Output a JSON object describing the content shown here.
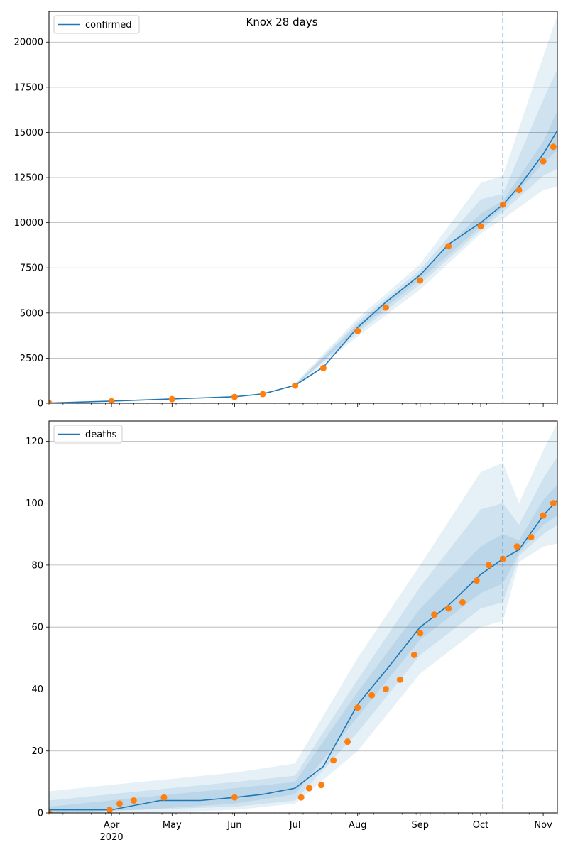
{
  "title": "Knox 28 days",
  "colors": {
    "model": "#1f77b4",
    "observed": "#ff7f0e",
    "band": "#1f77b4",
    "grid": "#b0b0b0",
    "forecast_line": "#1f77b4"
  },
  "x_ticks": [
    {
      "date": "2020-04-01",
      "label": "Apr",
      "sublabel": "2020"
    },
    {
      "date": "2020-05-01",
      "label": "May",
      "sublabel": ""
    },
    {
      "date": "2020-06-01",
      "label": "Jun",
      "sublabel": ""
    },
    {
      "date": "2020-07-01",
      "label": "Jul",
      "sublabel": ""
    },
    {
      "date": "2020-08-01",
      "label": "Aug",
      "sublabel": ""
    },
    {
      "date": "2020-09-01",
      "label": "Sep",
      "sublabel": ""
    },
    {
      "date": "2020-10-01",
      "label": "Oct",
      "sublabel": ""
    },
    {
      "date": "2020-11-01",
      "label": "Nov",
      "sublabel": ""
    }
  ],
  "chart_data": [
    {
      "type": "line",
      "title": "Knox 28 days",
      "legend": [
        "confirmed"
      ],
      "legend_position": "top-left",
      "grid": "horizontal",
      "xlim": [
        "2020-03-01",
        "2020-11-08"
      ],
      "ylim": [
        0,
        21700
      ],
      "yticks": [
        0,
        2500,
        5000,
        7500,
        10000,
        12500,
        15000,
        17500,
        20000
      ],
      "forecast_start": "2020-10-12",
      "series": [
        {
          "name": "confirmed",
          "kind": "model",
          "x": [
            "2020-03-01",
            "2020-04-01",
            "2020-05-01",
            "2020-06-01",
            "2020-06-15",
            "2020-07-01",
            "2020-07-15",
            "2020-08-01",
            "2020-08-15",
            "2020-09-01",
            "2020-09-15",
            "2020-10-01",
            "2020-10-12",
            "2020-10-20",
            "2020-11-01",
            "2020-11-08"
          ],
          "y": [
            10,
            120,
            240,
            360,
            520,
            1000,
            2000,
            4200,
            5600,
            7100,
            8800,
            10000,
            11000,
            12000,
            13800,
            15100
          ]
        },
        {
          "kind": "observed",
          "x": [
            "2020-03-01",
            "2020-04-01",
            "2020-05-01",
            "2020-06-01",
            "2020-06-15",
            "2020-07-01",
            "2020-07-15",
            "2020-08-01",
            "2020-08-15",
            "2020-09-01",
            "2020-09-15",
            "2020-10-01",
            "2020-10-12",
            "2020-10-20",
            "2020-11-01",
            "2020-11-06"
          ],
          "y": [
            10,
            110,
            230,
            350,
            510,
            980,
            1950,
            4000,
            5300,
            6800,
            8700,
            9800,
            11000,
            11800,
            13400,
            14200
          ]
        }
      ],
      "bands": [
        {
          "x": [
            "2020-07-01",
            "2020-08-01",
            "2020-09-01",
            "2020-10-01",
            "2020-10-12",
            "2020-11-01",
            "2020-11-08"
          ],
          "lower": [
            900,
            3700,
            6300,
            9400,
            10200,
            11800,
            12000
          ],
          "upper": [
            1100,
            4700,
            7700,
            12200,
            12600,
            19200,
            21500
          ]
        },
        {
          "x": [
            "2020-07-01",
            "2020-08-01",
            "2020-09-01",
            "2020-10-01",
            "2020-10-12",
            "2020-11-01",
            "2020-11-08"
          ],
          "lower": [
            950,
            3900,
            6600,
            9600,
            10600,
            12600,
            13000
          ],
          "upper": [
            1050,
            4500,
            7400,
            11300,
            11600,
            16800,
            18500
          ]
        },
        {
          "x": [
            "2020-07-01",
            "2020-08-01",
            "2020-09-01",
            "2020-10-01",
            "2020-10-12",
            "2020-11-01",
            "2020-11-08"
          ],
          "lower": [
            970,
            4050,
            6850,
            9800,
            10800,
            13300,
            14000
          ],
          "upper": [
            1030,
            4350,
            7200,
            10500,
            11200,
            14500,
            16200
          ]
        }
      ]
    },
    {
      "type": "line",
      "legend": [
        "deaths"
      ],
      "legend_position": "top-left",
      "grid": "horizontal",
      "xlim": [
        "2020-03-01",
        "2020-11-08"
      ],
      "ylim": [
        0,
        126.5
      ],
      "yticks": [
        0,
        20,
        40,
        60,
        80,
        100,
        120
      ],
      "forecast_start": "2020-10-12",
      "series": [
        {
          "name": "deaths",
          "kind": "model",
          "x": [
            "2020-03-01",
            "2020-04-01",
            "2020-04-25",
            "2020-05-15",
            "2020-06-01",
            "2020-06-15",
            "2020-07-01",
            "2020-07-15",
            "2020-08-01",
            "2020-08-15",
            "2020-09-01",
            "2020-09-15",
            "2020-10-01",
            "2020-10-12",
            "2020-10-20",
            "2020-11-01",
            "2020-11-08"
          ],
          "y": [
            1,
            1,
            4,
            4,
            5,
            6,
            8,
            15,
            35,
            46,
            60,
            67,
            77,
            82,
            85,
            96,
            101
          ]
        },
        {
          "kind": "observed",
          "x": [
            "2020-03-01",
            "2020-03-31",
            "2020-04-05",
            "2020-04-12",
            "2020-04-27",
            "2020-06-01",
            "2020-07-04",
            "2020-07-08",
            "2020-07-14",
            "2020-07-20",
            "2020-07-27",
            "2020-08-01",
            "2020-08-08",
            "2020-08-15",
            "2020-08-22",
            "2020-08-29",
            "2020-09-01",
            "2020-09-08",
            "2020-09-15",
            "2020-09-22",
            "2020-09-29",
            "2020-10-05",
            "2020-10-12",
            "2020-10-19",
            "2020-10-26",
            "2020-11-01",
            "2020-11-06"
          ],
          "y": [
            0,
            1,
            3,
            4,
            5,
            5,
            5,
            8,
            9,
            17,
            23,
            34,
            38,
            40,
            43,
            51,
            58,
            64,
            66,
            68,
            75,
            80,
            82,
            86,
            89,
            96,
            100
          ]
        }
      ],
      "bands": [
        {
          "x": [
            "2020-03-01",
            "2020-04-15",
            "2020-06-01",
            "2020-07-01",
            "2020-08-01",
            "2020-09-01",
            "2020-10-01",
            "2020-10-12",
            "2020-10-20",
            "2020-11-01",
            "2020-11-08"
          ],
          "lower": [
            0,
            0,
            1,
            3,
            20,
            45,
            60,
            62,
            81,
            86,
            87
          ],
          "upper": [
            7,
            10,
            13,
            16,
            50,
            80,
            110,
            113,
            100,
            117,
            126
          ]
        },
        {
          "x": [
            "2020-03-01",
            "2020-04-15",
            "2020-06-01",
            "2020-07-01",
            "2020-08-01",
            "2020-09-01",
            "2020-10-01",
            "2020-10-12",
            "2020-10-20",
            "2020-11-01",
            "2020-11-08"
          ],
          "lower": [
            0,
            1,
            2,
            4,
            26,
            51,
            66,
            68,
            83,
            90,
            93
          ],
          "upper": [
            4,
            7,
            10,
            12,
            43,
            73,
            98,
            100,
            93,
            108,
            115
          ]
        },
        {
          "x": [
            "2020-03-01",
            "2020-04-15",
            "2020-06-01",
            "2020-07-01",
            "2020-08-01",
            "2020-09-01",
            "2020-10-01",
            "2020-10-12",
            "2020-10-20",
            "2020-11-01",
            "2020-11-08"
          ],
          "lower": [
            0,
            1,
            3,
            6,
            31,
            56,
            71,
            74,
            84,
            93,
            96
          ],
          "upper": [
            2,
            5,
            8,
            10,
            39,
            66,
            86,
            90,
            88,
            101,
            106
          ]
        }
      ]
    }
  ]
}
